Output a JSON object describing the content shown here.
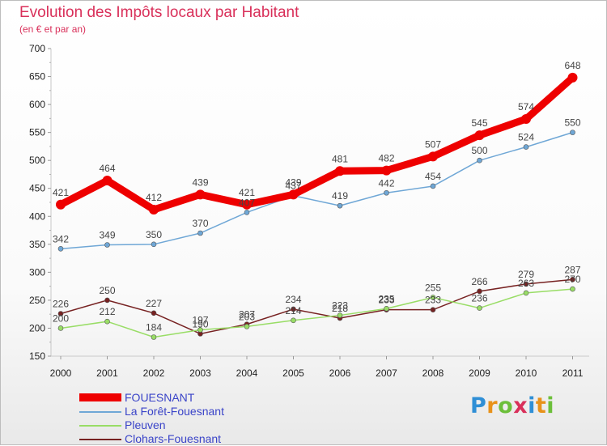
{
  "header": {
    "title": "Evolution des Impôts locaux par Habitant",
    "subtitle": "(en € et par an)"
  },
  "logo": {
    "text": "Proxiti"
  },
  "chart_data": {
    "type": "line",
    "x": [
      "2000",
      "2001",
      "2002",
      "2003",
      "2004",
      "2005",
      "2006",
      "2007",
      "2008",
      "2009",
      "2010",
      "2011"
    ],
    "ylim": [
      150,
      700
    ],
    "yticks": [
      150,
      200,
      250,
      300,
      350,
      400,
      450,
      500,
      550,
      600,
      650,
      700
    ],
    "grid": false,
    "legend_position": "bottom-left",
    "series": [
      {
        "name": "FOUESNANT",
        "color": "#ee0000",
        "values": [
          421,
          464,
          412,
          439,
          421,
          439,
          481,
          482,
          507,
          545,
          574,
          648
        ]
      },
      {
        "name": "La Forêt-Fouesnant",
        "color": "#6fa7d6",
        "values": [
          342,
          349,
          350,
          370,
          407,
          437,
          419,
          442,
          454,
          500,
          524,
          550
        ]
      },
      {
        "name": "Pleuven",
        "color": "#99dd66",
        "values": [
          200,
          212,
          184,
          197,
          203,
          214,
          223,
          235,
          255,
          236,
          263,
          270
        ]
      },
      {
        "name": "Clohars-Fouesnant",
        "color": "#772222",
        "values": [
          226,
          250,
          227,
          190,
          207,
          234,
          218,
          233,
          233,
          266,
          279,
          287
        ]
      }
    ]
  }
}
